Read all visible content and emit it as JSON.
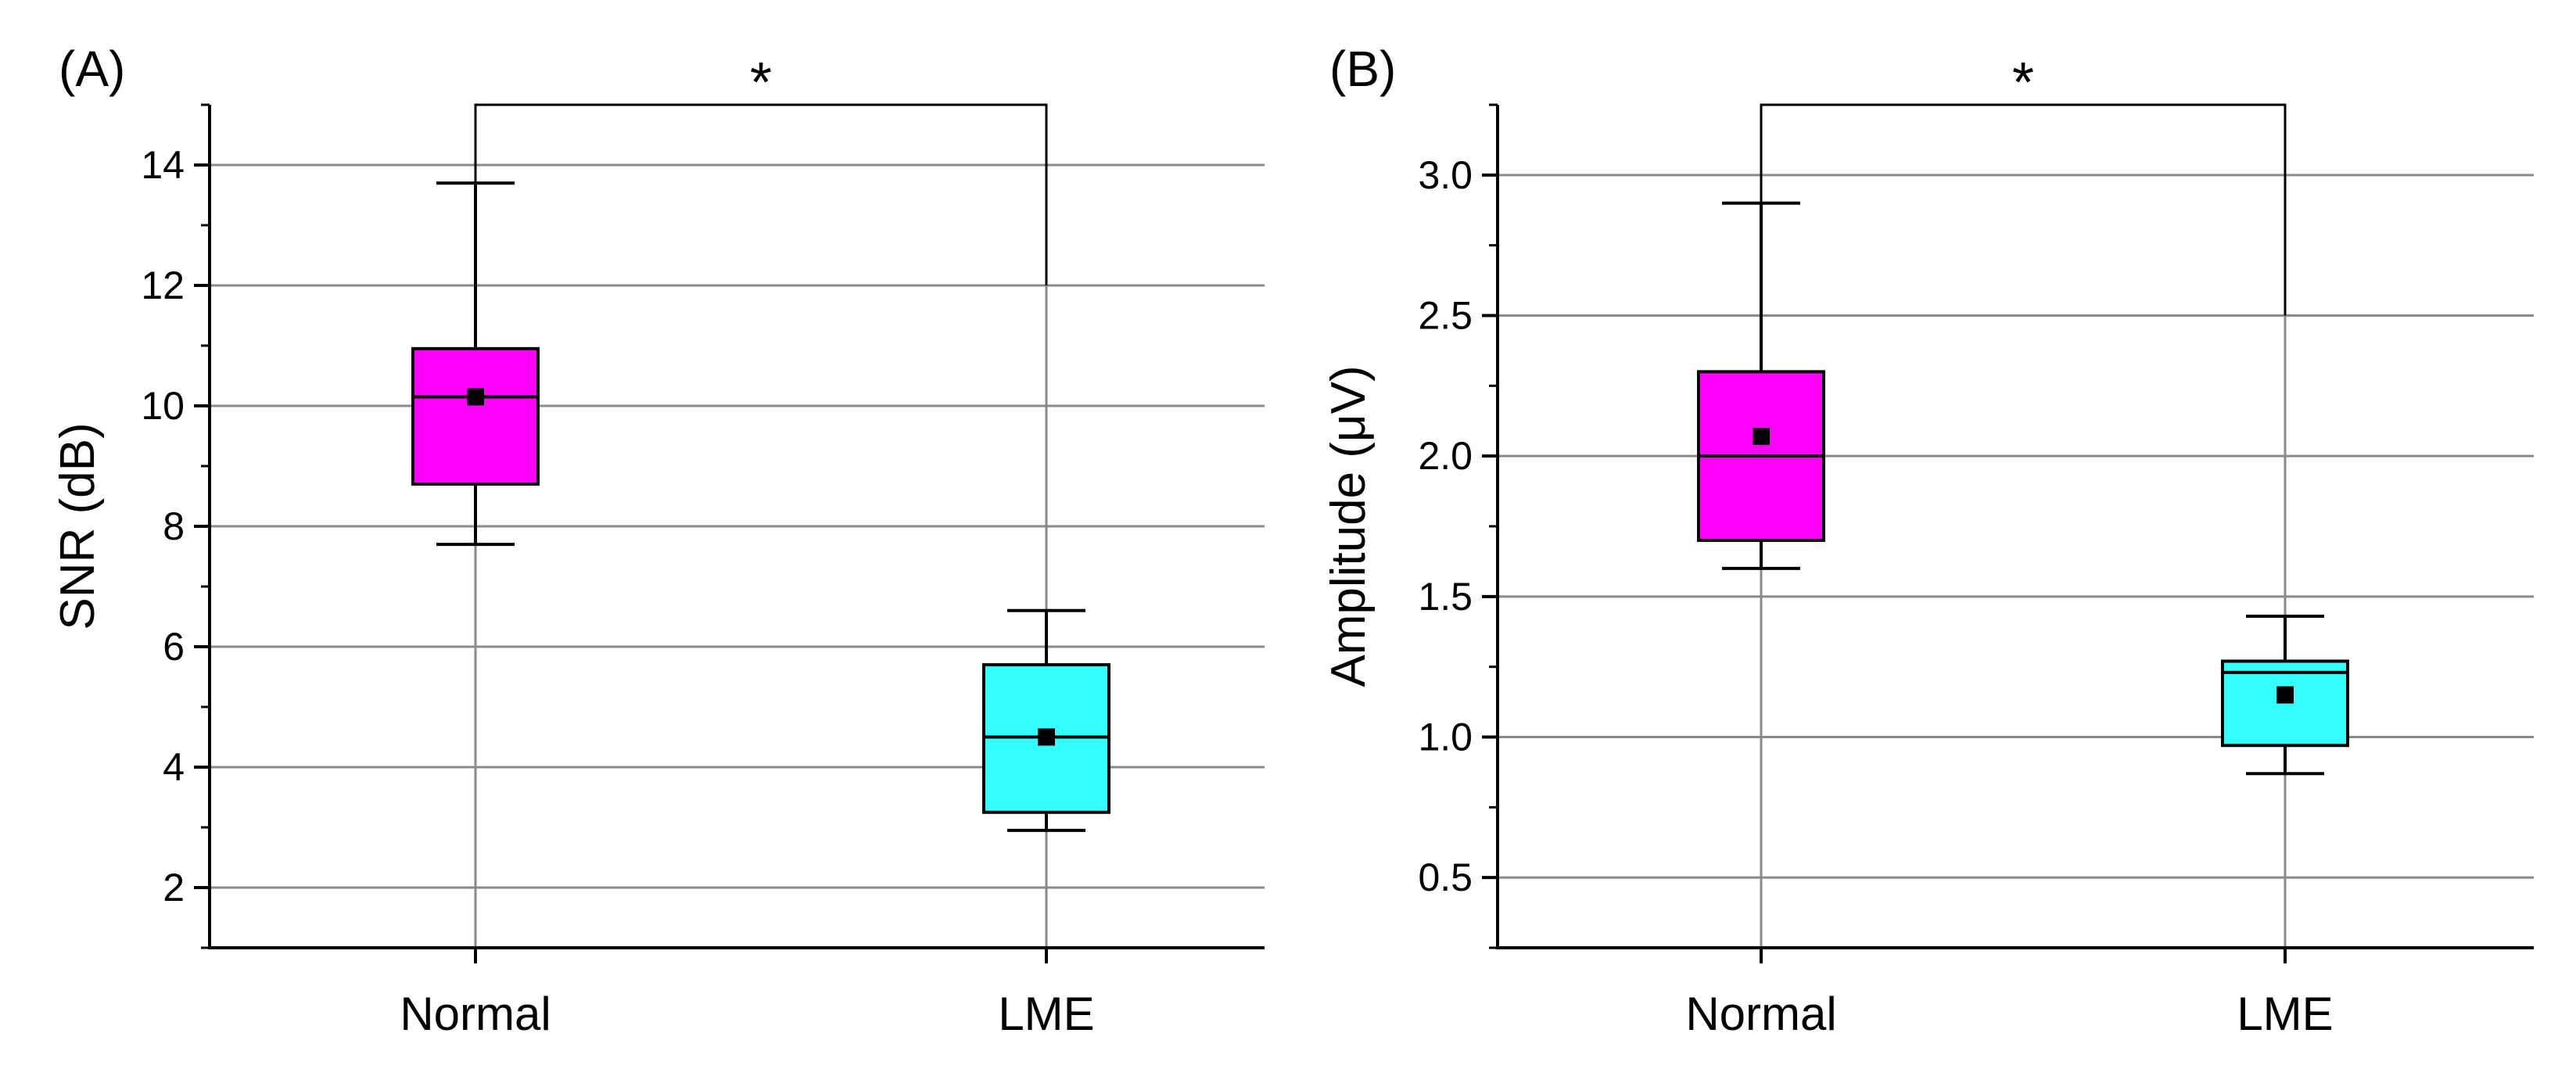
{
  "chart_data": [
    {
      "type": "box",
      "panel_label": "(A)",
      "title": "",
      "xlabel": "",
      "ylabel": "SNR (dB)",
      "ylim": [
        1,
        15
      ],
      "yticks": [
        2,
        4,
        6,
        8,
        10,
        12,
        14
      ],
      "tick_labels": [
        "2",
        "4",
        "6",
        "8",
        "10",
        "12",
        "14"
      ],
      "grid": true,
      "categories": [
        "Normal",
        "LME"
      ],
      "boxes": [
        {
          "name": "Normal",
          "color": "#ff00ff",
          "whisker_low": 7.7,
          "q1": 8.7,
          "median": 10.15,
          "q3": 10.95,
          "whisker_high": 13.7,
          "mean": 10.15
        },
        {
          "name": "LME",
          "color": "#33ffff",
          "whisker_low": 2.95,
          "q1": 3.25,
          "median": 4.5,
          "q3": 5.7,
          "whisker_high": 6.6,
          "mean": 4.5
        }
      ],
      "significance": {
        "label": "*",
        "from": "Normal",
        "to": "LME",
        "y": 15,
        "drop_left_to": 12.8,
        "drop_right_to": 12.0
      }
    },
    {
      "type": "box",
      "panel_label": "(B)",
      "title": "",
      "xlabel": "",
      "ylabel": "Amplitude (μV)",
      "ylim": [
        0.25,
        3.25
      ],
      "yticks": [
        0.5,
        1.0,
        1.5,
        2.0,
        2.5,
        3.0
      ],
      "tick_labels": [
        "0.5",
        "1.0",
        "1.5",
        "2.0",
        "2.5",
        "3.0"
      ],
      "grid": true,
      "categories": [
        "Normal",
        "LME"
      ],
      "boxes": [
        {
          "name": "Normal",
          "color": "#ff00ff",
          "whisker_low": 1.6,
          "q1": 1.7,
          "median": 2.0,
          "q3": 2.3,
          "whisker_high": 2.9,
          "mean": 2.07
        },
        {
          "name": "LME",
          "color": "#33ffff",
          "whisker_low": 0.87,
          "q1": 0.97,
          "median": 1.23,
          "q3": 1.27,
          "whisker_high": 1.43,
          "mean": 1.15
        }
      ],
      "significance": {
        "label": "*",
        "from": "Normal",
        "to": "LME",
        "y": 3.25,
        "drop_left_to": 2.9,
        "drop_right_to": 2.5
      }
    }
  ]
}
